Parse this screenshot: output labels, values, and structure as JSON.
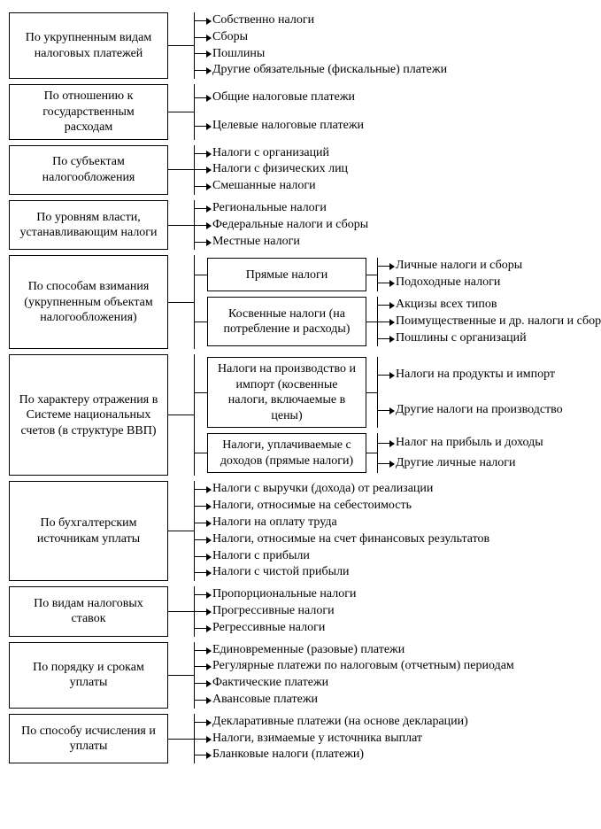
{
  "type": "tree",
  "colors": {
    "text": "#000000",
    "border": "#000000",
    "background": "#ffffff"
  },
  "font": {
    "family": "Times New Roman",
    "size_pt": 11
  },
  "layout": {
    "cat_width": 180,
    "mid_width": 180,
    "stem_width": 30,
    "lead_width": 18
  },
  "sections": [
    {
      "category": "По укрупненным видам налоговых платежей",
      "items": [
        "Собственно налоги",
        "Сборы",
        "Пошлины",
        "Другие обязательные (фискальные) платежи"
      ]
    },
    {
      "category": "По отношению к государственным расходам",
      "items": [
        "Общие налоговые платежи",
        "Целевые налоговые платежи"
      ]
    },
    {
      "category": "По субъектам налогообложения",
      "items": [
        "Налоги с организаций",
        "Налоги с физических лиц",
        "Смешанные налоги"
      ]
    },
    {
      "category": "По уровням власти, устанавливающим налоги",
      "items": [
        "Региональные налоги",
        "Федеральные налоги и сборы",
        "Местные налоги"
      ]
    },
    {
      "category": "По способам взимания (укрупненным объектам налогообложения)",
      "mids": [
        {
          "label": "Прямые налоги",
          "items": [
            "Личные налоги и сборы",
            "Подоходные налоги"
          ]
        },
        {
          "label": "Косвенные налоги (на потребление и расходы)",
          "items": [
            "Акцизы всех типов",
            "Поимущественные и др. налоги и сборы с организаций",
            "Пошлины с организаций"
          ]
        }
      ]
    },
    {
      "category": "По характеру отражения в Системе национальных счетов (в структуре ВВП)",
      "mids": [
        {
          "label": "Налоги на производство и импорт (косвенные налоги, включаемые в цены)",
          "items": [
            "Налоги на продукты и импорт",
            "Другие налоги на производство"
          ]
        },
        {
          "label": "Налоги, уплачиваемые с доходов (прямые налоги)",
          "items": [
            "Налог на прибыль и доходы",
            "Другие личные налоги"
          ]
        }
      ]
    },
    {
      "category": "По бухгалтерским источникам уплаты",
      "items": [
        "Налоги с выручки (дохода) от реализации",
        "Налоги, относимые на себестоимость",
        "Налоги на оплату труда",
        "Налоги, относимые на счет финансовых результатов",
        "Налоги с прибыли",
        "Налоги с чистой прибыли"
      ]
    },
    {
      "category": "По видам налоговых ставок",
      "items": [
        "Пропорциональные налоги",
        "Прогрессивные налоги",
        "Регрессивные налоги"
      ]
    },
    {
      "category": "По порядку и срокам уплаты",
      "items": [
        "Единовременные (разовые) платежи",
        "Регулярные платежи по налоговым (отчетным) периодам",
        "Фактические платежи",
        "Авансовые платежи"
      ]
    },
    {
      "category": "По способу исчисления и уплаты",
      "items": [
        "Декларативные платежи (на основе декларации)",
        "Налоги, взимаемые у источника выплат",
        "Бланковые налоги (платежи)"
      ]
    }
  ]
}
